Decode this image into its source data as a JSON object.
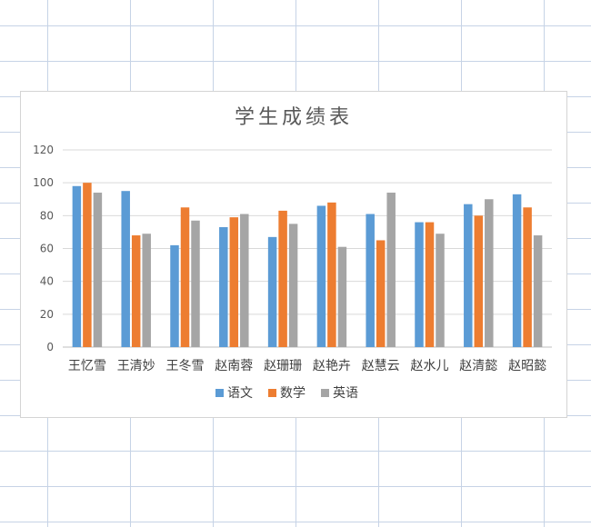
{
  "chart_data": {
    "type": "bar",
    "title": "学生成绩表",
    "categories": [
      "王忆雪",
      "王清妙",
      "王冬雪",
      "赵南蓉",
      "赵珊珊",
      "赵艳卉",
      "赵慧云",
      "赵水儿",
      "赵清懿",
      "赵昭懿"
    ],
    "series": [
      {
        "name": "语文",
        "color": "#5b9bd5",
        "values": [
          98,
          95,
          62,
          73,
          67,
          86,
          81,
          76,
          87,
          93
        ]
      },
      {
        "name": "数学",
        "color": "#ed7d31",
        "values": [
          100,
          68,
          85,
          79,
          83,
          88,
          65,
          76,
          80,
          85
        ]
      },
      {
        "name": "英语",
        "color": "#a5a5a5",
        "values": [
          94,
          69,
          77,
          81,
          75,
          61,
          94,
          69,
          90,
          68
        ]
      }
    ],
    "ylim": [
      0,
      120
    ],
    "yticks": [
      0,
      20,
      40,
      60,
      80,
      100,
      120
    ],
    "grid": true,
    "legend": "bottom"
  }
}
